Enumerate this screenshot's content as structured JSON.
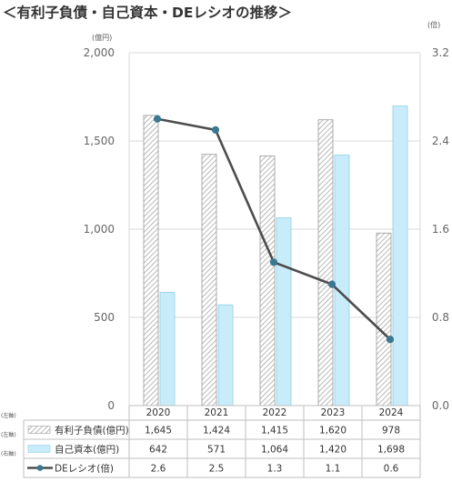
{
  "title": "＜有利子負債・自己資本・DEレシオの推移＞",
  "left_unit": "(億円)",
  "right_unit": "(倍)",
  "colors": {
    "debt_fill": "#ffffff",
    "debt_hatch": "#9a9a9a",
    "equity_fill": "#c9ecfa",
    "equity_stroke": "#8fcfe8",
    "line": "#4d4d4d",
    "marker": "#3b7891",
    "grid": "#d9d9d9"
  },
  "chart_data": {
    "type": "bar",
    "categories": [
      "2020",
      "2021",
      "2022",
      "2023",
      "2024"
    ],
    "left_axis": {
      "range": [
        0,
        2000
      ],
      "ticks": [
        "0",
        "500",
        "1,000",
        "1,500",
        "2,000"
      ],
      "tick_values": [
        0,
        500,
        1000,
        1500,
        2000
      ]
    },
    "right_axis": {
      "range": [
        0,
        3.2
      ],
      "ticks": [
        "0.0",
        "0.8",
        "1.6",
        "2.4",
        "3.2"
      ],
      "tick_values": [
        0,
        0.8,
        1.6,
        2.4,
        3.2
      ]
    },
    "grid": true,
    "legend_placement": "bottom-table",
    "series": [
      {
        "name": "有利子負債(億円)",
        "axis_tag": "(左軸)",
        "type": "bar",
        "pattern": "hatched",
        "values": [
          1645,
          1424,
          1415,
          1620,
          978
        ],
        "labels": [
          "1,645",
          "1,424",
          "1,415",
          "1,620",
          "978"
        ]
      },
      {
        "name": "自己資本(億円)",
        "axis_tag": "(左軸)",
        "type": "bar",
        "pattern": "solid",
        "values": [
          642,
          571,
          1064,
          1420,
          1698
        ],
        "labels": [
          "642",
          "571",
          "1,064",
          "1,420",
          "1,698"
        ]
      },
      {
        "name": "DEレシオ(倍)",
        "axis_tag": "(右軸)",
        "type": "line",
        "values": [
          2.6,
          2.5,
          1.3,
          1.1,
          0.6
        ],
        "labels": [
          "2.6",
          "2.5",
          "1.3",
          "1.1",
          "0.6"
        ]
      }
    ]
  }
}
